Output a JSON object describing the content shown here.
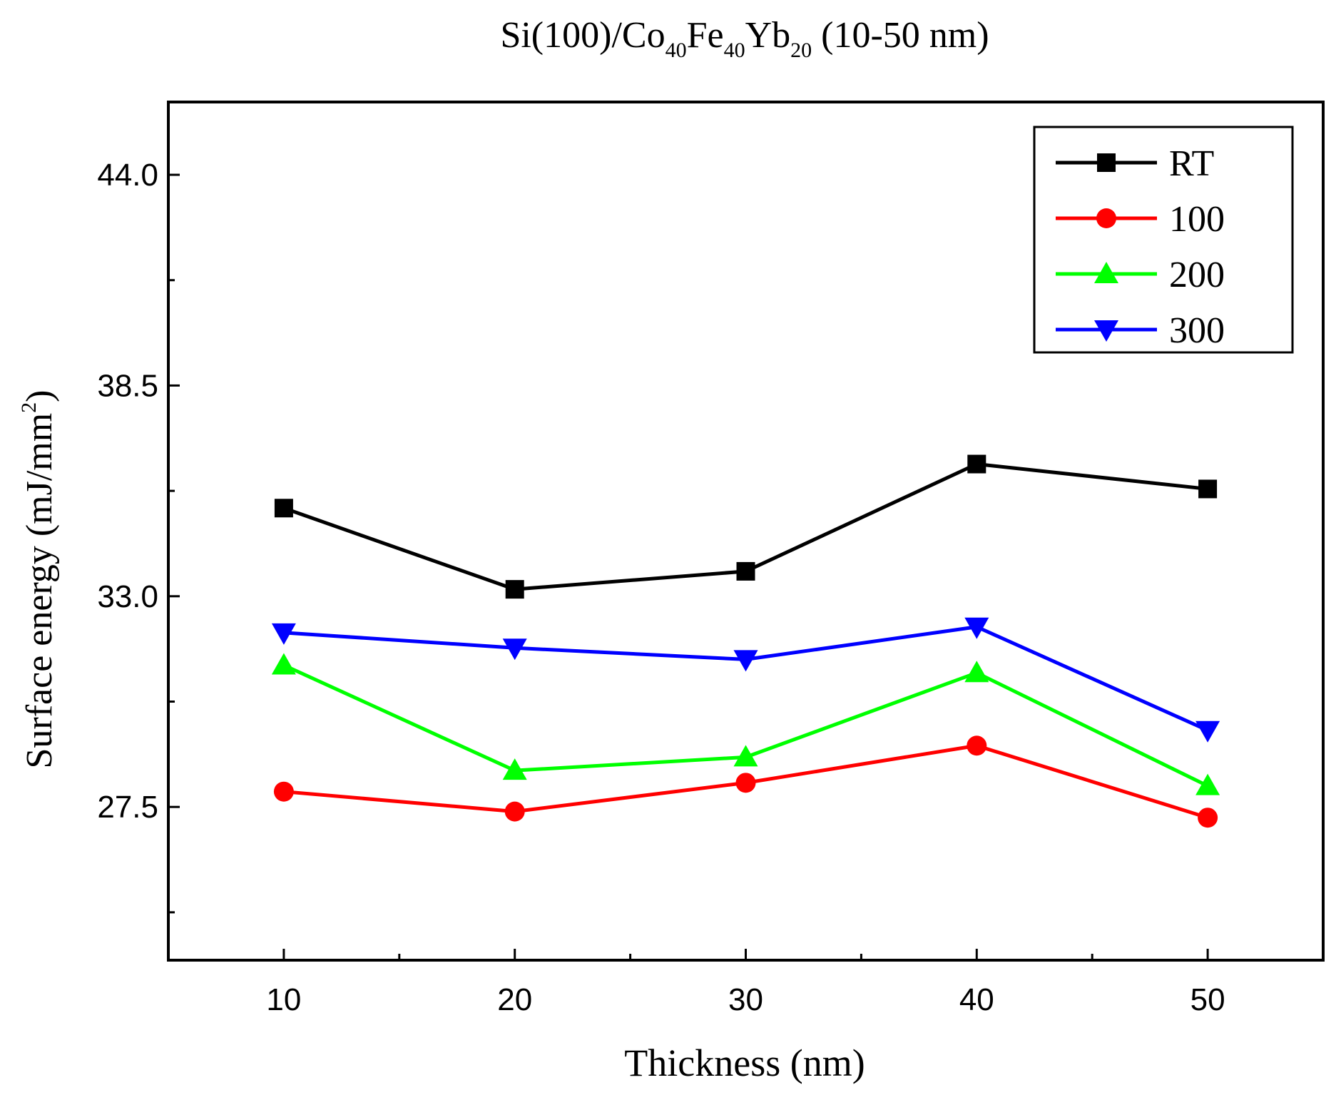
{
  "chart_data": {
    "type": "line",
    "title": {
      "parts": [
        "Si(100)/Co",
        "40",
        "Fe",
        "40",
        "Yb",
        "20",
        " (10-50 nm)"
      ]
    },
    "xlabel": "Thickness (nm)",
    "ylabel": {
      "main": "Surface energy (mJ/mm",
      "sup": "2",
      "close": ")"
    },
    "x": [
      10,
      20,
      30,
      40,
      50
    ],
    "xlim": [
      5,
      55
    ],
    "ylim": [
      23.5,
      45.9
    ],
    "x_ticks_major": [
      10,
      20,
      30,
      40,
      50
    ],
    "x_tick_labels": [
      "10",
      "20",
      "30",
      "40",
      "50"
    ],
    "x_ticks_minor": [
      15,
      25,
      35,
      45
    ],
    "y_ticks_major": [
      27.5,
      33.0,
      38.5,
      44.0
    ],
    "y_tick_labels": [
      "27.5",
      "33.0",
      "38.5",
      "44.0"
    ],
    "y_ticks_minor": [
      24.75,
      30.25,
      35.75,
      41.25
    ],
    "legend_position": "top-right",
    "grid": false,
    "series": [
      {
        "name": "RT",
        "marker": "square",
        "color": "#000000",
        "values": [
          35.3,
          33.18,
          33.65,
          36.45,
          35.8
        ]
      },
      {
        "name": "100",
        "marker": "circle",
        "color": "#ff0000",
        "values": [
          27.9,
          27.38,
          28.13,
          29.1,
          27.22
        ]
      },
      {
        "name": "200",
        "marker": "triangle-up",
        "color": "#00ff00",
        "values": [
          31.2,
          28.45,
          28.8,
          31.0,
          28.05
        ]
      },
      {
        "name": "300",
        "marker": "triangle-down",
        "color": "#0000ff",
        "values": [
          32.05,
          31.65,
          31.35,
          32.2,
          29.5
        ]
      }
    ]
  }
}
